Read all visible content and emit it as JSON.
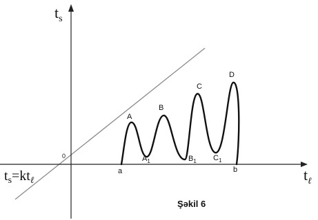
{
  "axes": {
    "y_label": "t",
    "y_label_sub": "s",
    "x_label": "t",
    "x_label_sub": "ℓ",
    "origin_label": "0"
  },
  "line_equation": {
    "lhs": "t",
    "lhs_sub": "s",
    "rhs": "=kt",
    "rhs_sub": "ℓ"
  },
  "points": {
    "peaks": [
      "A",
      "B",
      "C",
      "D"
    ],
    "troughs": [
      {
        "base": "A",
        "sub": "1"
      },
      {
        "base": "B",
        "sub": "1"
      },
      {
        "base": "C",
        "sub": "1"
      }
    ],
    "endpoints": [
      "a",
      "b"
    ]
  },
  "caption": "Şəkil 6",
  "colors": {
    "line": "#8a8a8a",
    "axis": "#222222",
    "curve": "#111111"
  }
}
